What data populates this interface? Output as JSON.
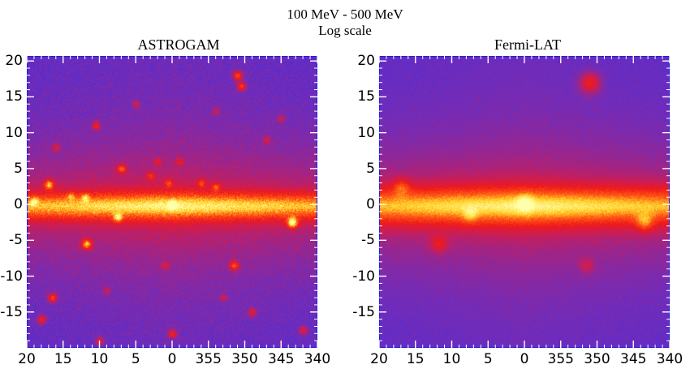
{
  "header": {
    "line1": "100 MeV - 500 MeV",
    "line2": "Log scale"
  },
  "panels": [
    {
      "title": "ASTROGAM",
      "sources": [
        {
          "l": 17,
          "b": 2.8,
          "s": 0.9
        },
        {
          "l": 11.8,
          "b": -5.5,
          "s": 1.0
        },
        {
          "l": 7,
          "b": 5,
          "s": 0.7
        },
        {
          "l": 7.5,
          "b": -1.8,
          "s": 0.7
        },
        {
          "l": 16.5,
          "b": -13,
          "s": 0.8
        },
        {
          "l": 18,
          "b": -16,
          "s": 0.7
        },
        {
          "l": 10.5,
          "b": 11,
          "s": 0.6
        },
        {
          "l": 10,
          "b": -19,
          "s": 0.6
        },
        {
          "l": 0,
          "b": -18,
          "s": 0.7
        },
        {
          "l": 351,
          "b": 18,
          "s": 0.9
        },
        {
          "l": 350.5,
          "b": 16.5,
          "s": 0.8
        },
        {
          "l": 351.5,
          "b": -8.5,
          "s": 0.8
        },
        {
          "l": 343.5,
          "b": -2.5,
          "s": 1.1
        },
        {
          "l": 349,
          "b": -15,
          "s": 0.6
        },
        {
          "l": 342,
          "b": -17.5,
          "s": 0.6
        },
        {
          "l": 3,
          "b": 4,
          "s": 0.5
        },
        {
          "l": 0.5,
          "b": 3,
          "s": 0.5
        },
        {
          "l": 356,
          "b": 3,
          "s": 0.5
        },
        {
          "l": 354,
          "b": 2.5,
          "s": 0.5
        },
        {
          "l": 2,
          "b": 6,
          "s": 0.4
        },
        {
          "l": 12,
          "b": 1,
          "s": 0.5
        },
        {
          "l": 14,
          "b": 1.2,
          "s": 0.4
        },
        {
          "l": 19,
          "b": 0.5,
          "s": 0.5
        },
        {
          "l": 0,
          "b": 0,
          "s": 0.6
        },
        {
          "l": 347,
          "b": 9,
          "s": 0.4
        },
        {
          "l": 354,
          "b": 13,
          "s": 0.4
        },
        {
          "l": 5,
          "b": 14,
          "s": 0.4
        },
        {
          "l": 353,
          "b": -13,
          "s": 0.4
        },
        {
          "l": 1,
          "b": -8.5,
          "s": 0.4
        },
        {
          "l": 359,
          "b": 6,
          "s": 0.4
        },
        {
          "l": 16,
          "b": 8,
          "s": 0.4
        },
        {
          "l": 9,
          "b": -12,
          "s": 0.4
        },
        {
          "l": 345,
          "b": 12,
          "s": 0.4
        }
      ]
    },
    {
      "title": "Fermi-LAT",
      "sources": [
        {
          "l": 351,
          "b": 17,
          "s": 1.1
        },
        {
          "l": 343.5,
          "b": -2.5,
          "s": 0.8
        },
        {
          "l": 11.8,
          "b": -5.5,
          "s": 0.7
        },
        {
          "l": 351.5,
          "b": -8.5,
          "s": 0.5
        },
        {
          "l": 17,
          "b": 2.5,
          "s": 0.7
        },
        {
          "l": 7.5,
          "b": -1.5,
          "s": 0.5
        },
        {
          "l": 0,
          "b": 0.3,
          "s": 0.6
        }
      ]
    }
  ],
  "axes": {
    "x_ticks": [
      "20",
      "15",
      "10",
      "5",
      "0",
      "355",
      "350",
      "345",
      "340"
    ],
    "y_ticks": [
      "20",
      "15",
      "10",
      "5",
      "0",
      "-5",
      "-10",
      "-15"
    ]
  },
  "colors": {
    "frame": "#2020e0",
    "ticks": "#ffffff"
  }
}
